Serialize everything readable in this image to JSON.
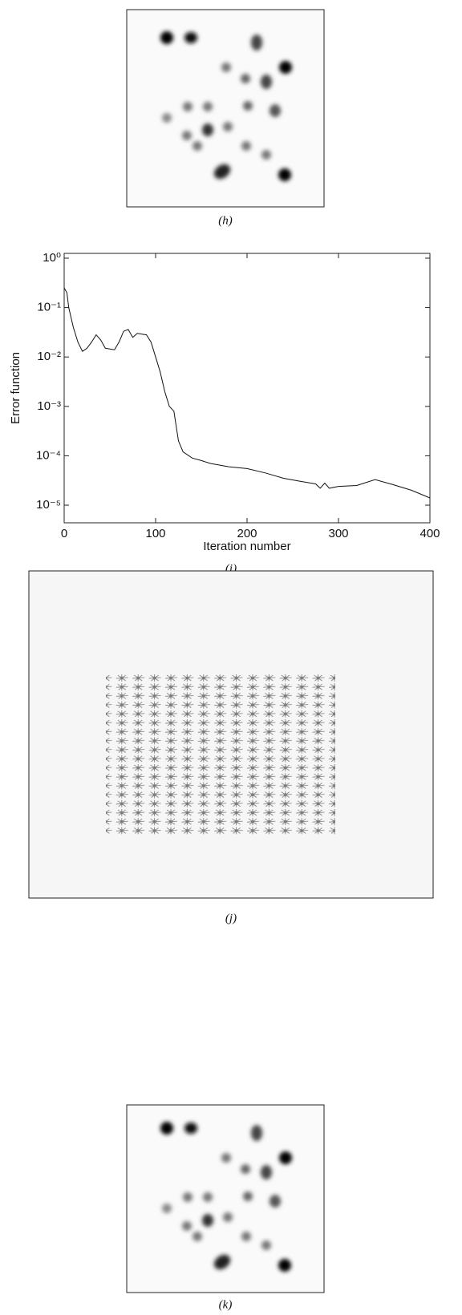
{
  "figures": [
    {
      "label": "(h)"
    },
    {
      "label": "(j)"
    },
    {
      "label": "(k)"
    }
  ],
  "chart_data": {
    "type": "line",
    "caption": "(i)",
    "x_label": "Iteration number",
    "y_label": "Error function",
    "log_y": true,
    "color": "#111111",
    "x": [
      0,
      3,
      5,
      10,
      15,
      20,
      25,
      30,
      35,
      40,
      45,
      55,
      60,
      65,
      70,
      75,
      80,
      90,
      95,
      100,
      105,
      110,
      115,
      120,
      125,
      130,
      140,
      150,
      160,
      180,
      200,
      220,
      240,
      260,
      275,
      280,
      285,
      290,
      300,
      320,
      340,
      360,
      380,
      400
    ],
    "series": [
      {
        "name": "Error function",
        "values": [
          0.25,
          0.2,
          0.1,
          0.04,
          0.02,
          0.013,
          0.015,
          0.02,
          0.028,
          0.022,
          0.015,
          0.014,
          0.02,
          0.033,
          0.036,
          0.025,
          0.03,
          0.028,
          0.02,
          0.01,
          0.005,
          0.002,
          0.001,
          0.0008,
          0.0002,
          0.00012,
          9e-05,
          8e-05,
          7e-05,
          6e-05,
          5.5e-05,
          4.5e-05,
          3.5e-05,
          3e-05,
          2.7e-05,
          2.2e-05,
          2.8e-05,
          2.2e-05,
          2.4e-05,
          2.5e-05,
          3.3e-05,
          2.6e-05,
          2e-05,
          1.4e-05
        ]
      }
    ],
    "xlim": [
      0,
      400
    ],
    "xticks": [
      0,
      100,
      200,
      300,
      400
    ],
    "ylim": [
      4.4e-06,
      1.25
    ],
    "yticks": [
      {
        "value": 1,
        "label": "10⁰"
      },
      {
        "value": 0.1,
        "label": "10⁻¹"
      },
      {
        "value": 0.01,
        "label": "10⁻²"
      },
      {
        "value": 0.001,
        "label": "10⁻³"
      },
      {
        "value": 0.0001,
        "label": "10⁻⁴"
      },
      {
        "value": 1e-05,
        "label": "10⁻⁵"
      }
    ]
  }
}
